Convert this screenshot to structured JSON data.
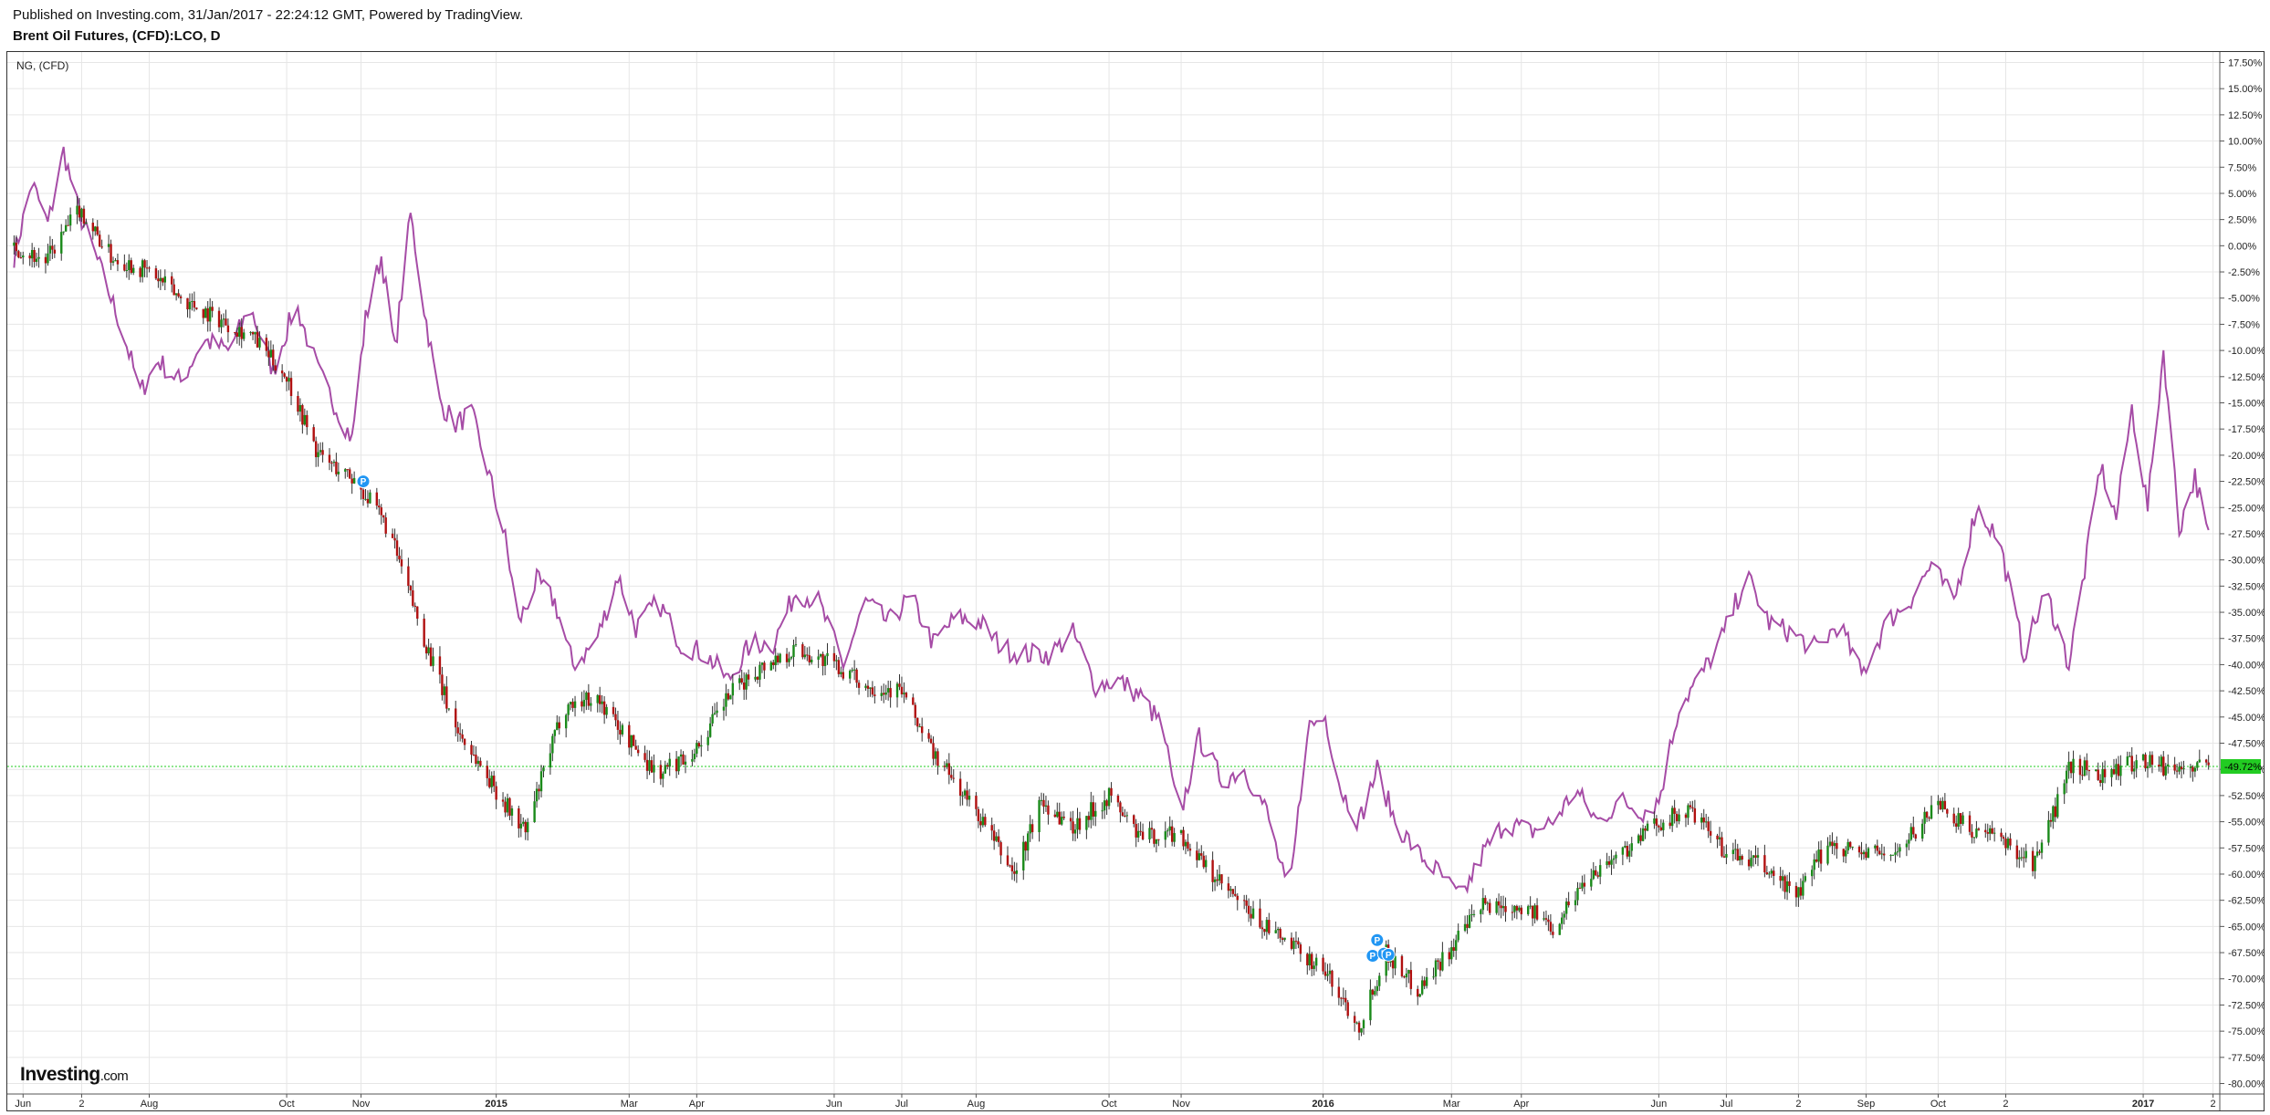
{
  "header": {
    "published": "Published on Investing.com, 31/Jan/2017 - 22:24:12 GMT, Powered by TradingView.",
    "title": "Brent Oil Futures, (CFD):LCO, D"
  },
  "logo": {
    "brand": "Investing",
    "suffix": ".com"
  },
  "colors": {
    "up": "#1a8a1a",
    "down": "#b01010",
    "compare": "#a64ca6",
    "current": "#22cc22",
    "grid": "#e6e6e6",
    "marker": "#2196f3"
  },
  "chart_data": {
    "type": "line",
    "title": "",
    "compare_symbol": "NG,  (CFD)",
    "ylabel": "",
    "y_unit": "%",
    "ylim": [
      -81,
      18.5
    ],
    "y_ticks": [
      "17.50%",
      "15.00%",
      "12.50%",
      "10.00%",
      "7.50%",
      "5.00%",
      "2.50%",
      "0.00%",
      "-2.50%",
      "-5.00%",
      "-7.50%",
      "-10.00%",
      "-12.50%",
      "-15.00%",
      "-17.50%",
      "-20.00%",
      "-22.50%",
      "-25.00%",
      "-27.50%",
      "-30.00%",
      "-32.50%",
      "-35.00%",
      "-37.50%",
      "-40.00%",
      "-42.50%",
      "-45.00%",
      "-47.50%",
      "-50.00%",
      "-52.50%",
      "-55.00%",
      "-57.50%",
      "-60.00%",
      "-62.50%",
      "-65.00%",
      "-67.50%",
      "-70.00%",
      "-72.50%",
      "-75.00%",
      "-77.50%",
      "-80.00%"
    ],
    "x_ticks": [
      {
        "label": "Jun",
        "d": "2014-06-06"
      },
      {
        "label": "2",
        "d": "2014-07-02"
      },
      {
        "label": "Aug",
        "d": "2014-08-01"
      },
      {
        "label": "Oct",
        "d": "2014-10-01"
      },
      {
        "label": "Nov",
        "d": "2014-11-03"
      },
      {
        "label": "2015",
        "d": "2015-01-02",
        "bold": true
      },
      {
        "label": "Mar",
        "d": "2015-03-02"
      },
      {
        "label": "Apr",
        "d": "2015-04-01"
      },
      {
        "label": "Jun",
        "d": "2015-06-01"
      },
      {
        "label": "Jul",
        "d": "2015-07-01"
      },
      {
        "label": "Aug",
        "d": "2015-08-03"
      },
      {
        "label": "Oct",
        "d": "2015-10-01"
      },
      {
        "label": "Nov",
        "d": "2015-11-02"
      },
      {
        "label": "2016",
        "d": "2016-01-04",
        "bold": true
      },
      {
        "label": "Mar",
        "d": "2016-03-01"
      },
      {
        "label": "Apr",
        "d": "2016-04-01"
      },
      {
        "label": "Jun",
        "d": "2016-06-01"
      },
      {
        "label": "Jul",
        "d": "2016-07-01"
      },
      {
        "label": "2",
        "d": "2016-08-02"
      },
      {
        "label": "Sep",
        "d": "2016-09-01"
      },
      {
        "label": "Oct",
        "d": "2016-10-03"
      },
      {
        "label": "2",
        "d": "2016-11-02"
      },
      {
        "label": "2017",
        "d": "2017-01-02",
        "bold": true
      },
      {
        "label": "2",
        "d": "2017-02-02"
      }
    ],
    "xlim": [
      "2014-05-30",
      "2017-02-05"
    ],
    "current_value_label": "-49.72%",
    "current_value": -49.72,
    "markers": [
      {
        "d": "2014-11-04",
        "v": -22.5,
        "label": "P"
      },
      {
        "d": "2016-01-28",
        "v": -66.3,
        "label": "P"
      },
      {
        "d": "2016-01-26",
        "v": -67.8,
        "label": "P"
      },
      {
        "d": "2016-01-31",
        "v": -67.6,
        "label": "P"
      },
      {
        "d": "2016-02-02",
        "v": -67.7,
        "label": "P"
      }
    ],
    "series": [
      {
        "name": "",
        "kind": "candles",
        "x": [
          "2014-06-02",
          "2014-06-16",
          "2014-07-01",
          "2014-07-15",
          "2014-08-01",
          "2014-08-15",
          "2014-09-01",
          "2014-09-15",
          "2014-10-01",
          "2014-10-15",
          "2014-11-01",
          "2014-11-15",
          "2014-12-01",
          "2014-12-15",
          "2015-01-05",
          "2015-01-15",
          "2015-02-01",
          "2015-02-15",
          "2015-03-01",
          "2015-03-15",
          "2015-04-01",
          "2015-04-15",
          "2015-05-01",
          "2015-05-15",
          "2015-06-01",
          "2015-06-15",
          "2015-07-01",
          "2015-07-15",
          "2015-08-03",
          "2015-08-20",
          "2015-09-01",
          "2015-09-15",
          "2015-10-01",
          "2015-10-15",
          "2015-11-01",
          "2015-11-15",
          "2015-12-01",
          "2015-12-15",
          "2016-01-04",
          "2016-01-20",
          "2016-02-01",
          "2016-02-15",
          "2016-03-01",
          "2016-03-15",
          "2016-04-01",
          "2016-04-15",
          "2016-05-01",
          "2016-05-15",
          "2016-06-01",
          "2016-06-15",
          "2016-07-01",
          "2016-07-15",
          "2016-08-02",
          "2016-08-15",
          "2016-09-01",
          "2016-09-15",
          "2016-10-03",
          "2016-10-15",
          "2016-11-02",
          "2016-11-15",
          "2016-12-01",
          "2016-12-15",
          "2017-01-02",
          "2017-01-15",
          "2017-01-31"
        ],
        "values": [
          0.0,
          -1.5,
          3.5,
          -1.0,
          -2.5,
          -5.0,
          -7.0,
          -8.5,
          -12.5,
          -20.0,
          -22.5,
          -27.0,
          -37.5,
          -46.0,
          -53.0,
          -56.0,
          -44.0,
          -43.0,
          -47.0,
          -50.5,
          -48.0,
          -43.0,
          -40.0,
          -38.5,
          -40.0,
          -42.0,
          -42.5,
          -48.5,
          -54.0,
          -60.0,
          -53.0,
          -55.5,
          -52.5,
          -56.5,
          -56.0,
          -60.0,
          -63.5,
          -66.0,
          -69.0,
          -74.5,
          -67.5,
          -71.0,
          -67.0,
          -63.0,
          -63.0,
          -65.0,
          -60.0,
          -58.0,
          -55.0,
          -54.0,
          -58.0,
          -59.0,
          -62.0,
          -57.0,
          -58.0,
          -58.0,
          -53.0,
          -55.5,
          -57.0,
          -59.0,
          -49.5,
          -50.5,
          -49.0,
          -50.0,
          -49.7
        ]
      },
      {
        "name": "",
        "kind": "line",
        "x": [
          "2014-06-02",
          "2014-06-10",
          "2014-06-17",
          "2014-06-24",
          "2014-07-01",
          "2014-07-10",
          "2014-07-20",
          "2014-07-28",
          "2014-08-05",
          "2014-08-15",
          "2014-08-25",
          "2014-09-05",
          "2014-09-15",
          "2014-09-25",
          "2014-10-05",
          "2014-10-15",
          "2014-10-22",
          "2014-10-30",
          "2014-11-05",
          "2014-11-12",
          "2014-11-18",
          "2014-11-25",
          "2014-12-01",
          "2014-12-08",
          "2014-12-15",
          "2014-12-22",
          "2014-12-30",
          "2015-01-06",
          "2015-01-12",
          "2015-01-20",
          "2015-01-28",
          "2015-02-05",
          "2015-02-15",
          "2015-02-25",
          "2015-03-05",
          "2015-03-15",
          "2015-03-25",
          "2015-04-05",
          "2015-04-15",
          "2015-04-25",
          "2015-05-05",
          "2015-05-15",
          "2015-05-25",
          "2015-06-05",
          "2015-06-15",
          "2015-06-25",
          "2015-07-05",
          "2015-07-15",
          "2015-07-25",
          "2015-08-05",
          "2015-08-15",
          "2015-08-25",
          "2015-09-05",
          "2015-09-15",
          "2015-09-25",
          "2015-10-05",
          "2015-10-15",
          "2015-10-25",
          "2015-11-01",
          "2015-11-10",
          "2015-11-20",
          "2015-11-30",
          "2015-12-10",
          "2015-12-20",
          "2015-12-28",
          "2016-01-05",
          "2016-01-12",
          "2016-01-20",
          "2016-01-28",
          "2016-02-05",
          "2016-02-15",
          "2016-02-25",
          "2016-03-05",
          "2016-03-15",
          "2016-03-25",
          "2016-04-05",
          "2016-04-15",
          "2016-04-25",
          "2016-05-05",
          "2016-05-15",
          "2016-05-25",
          "2016-06-01",
          "2016-06-10",
          "2016-06-20",
          "2016-06-30",
          "2016-07-10",
          "2016-07-20",
          "2016-07-30",
          "2016-08-10",
          "2016-08-20",
          "2016-08-30",
          "2016-09-10",
          "2016-09-20",
          "2016-09-30",
          "2016-10-10",
          "2016-10-20",
          "2016-10-30",
          "2016-11-10",
          "2016-11-20",
          "2016-11-30",
          "2016-12-07",
          "2016-12-14",
          "2016-12-21",
          "2016-12-28",
          "2017-01-04",
          "2017-01-11",
          "2017-01-18",
          "2017-01-25",
          "2017-01-31"
        ],
        "values": [
          -1.0,
          6.0,
          2.0,
          9.0,
          3.0,
          -2.0,
          -8.0,
          -14.0,
          -11.0,
          -13.0,
          -9.0,
          -10.0,
          -6.0,
          -12.0,
          -5.5,
          -12.0,
          -15.0,
          -18.5,
          -7.0,
          -1.0,
          -10.0,
          3.0,
          -6.0,
          -15.0,
          -17.0,
          -16.0,
          -22.0,
          -28.0,
          -36.0,
          -32.0,
          -34.0,
          -40.0,
          -38.0,
          -31.5,
          -36.5,
          -34.0,
          -38.0,
          -39.0,
          -41.5,
          -38.0,
          -38.0,
          -33.0,
          -34.0,
          -40.0,
          -34.0,
          -36.0,
          -33.5,
          -38.0,
          -35.5,
          -36.0,
          -38.5,
          -39.0,
          -39.0,
          -37.0,
          -42.0,
          -41.5,
          -43.0,
          -46.0,
          -55.0,
          -47.0,
          -51.0,
          -50.0,
          -54.0,
          -62.5,
          -46.0,
          -45.0,
          -52.0,
          -55.0,
          -50.0,
          -55.0,
          -58.0,
          -60.0,
          -62.5,
          -58.0,
          -55.0,
          -56.0,
          -55.0,
          -52.0,
          -55.0,
          -53.0,
          -54.0,
          -53.0,
          -44.0,
          -41.0,
          -37.0,
          -31.5,
          -36.0,
          -37.0,
          -38.5,
          -36.0,
          -41.0,
          -36.0,
          -34.0,
          -30.5,
          -34.0,
          -25.0,
          -28.0,
          -39.0,
          -33.0,
          -40.0,
          -31.0,
          -21.0,
          -26.0,
          -15.5,
          -25.0,
          -10.0,
          -27.0,
          -22.0,
          -28.0
        ]
      }
    ]
  }
}
